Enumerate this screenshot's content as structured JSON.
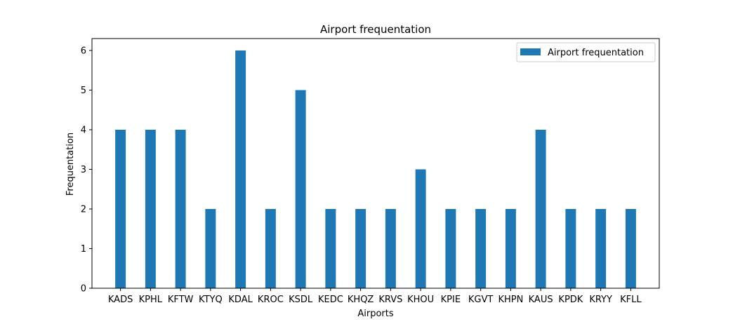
{
  "chart_data": {
    "type": "bar",
    "title": "Airport frequentation",
    "xlabel": "Airports",
    "ylabel": "Frequentation",
    "categories": [
      "KADS",
      "KPHL",
      "KFTW",
      "KTYQ",
      "KDAL",
      "KROC",
      "KSDL",
      "KEDC",
      "KHQZ",
      "KRVS",
      "KHOU",
      "KPIE",
      "KGVT",
      "KHPN",
      "KAUS",
      "KPDK",
      "KRYY",
      "KFLL"
    ],
    "series": [
      {
        "name": "Airport frequentation",
        "values": [
          4,
          4,
          4,
          2,
          6,
          2,
          5,
          2,
          2,
          2,
          3,
          2,
          2,
          2,
          4,
          2,
          2,
          2
        ],
        "color": "#1f77b4"
      }
    ],
    "yticks": [
      "0",
      "1",
      "2",
      "3",
      "4",
      "5",
      "6"
    ],
    "ylim": [
      0,
      6.3
    ],
    "grid": false,
    "legend_position": "top-right"
  }
}
